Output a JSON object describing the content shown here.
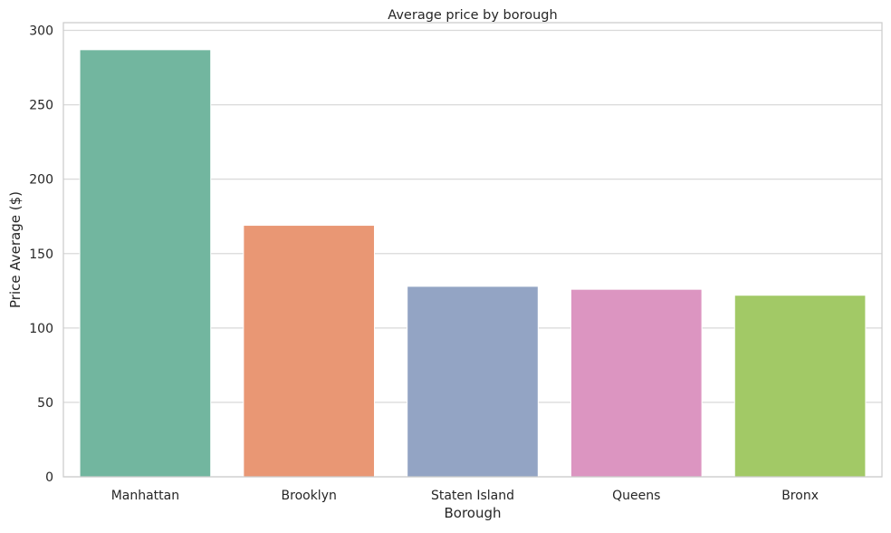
{
  "chart_data": {
    "type": "bar",
    "title": "Average price by borough",
    "xlabel": "Borough",
    "ylabel": "Price Average ($)",
    "categories": [
      "Manhattan",
      "Brooklyn",
      "Staten Island",
      "Queens",
      "Bronx"
    ],
    "values": [
      287,
      169,
      128,
      126,
      122
    ],
    "colors": [
      "#72b69f",
      "#e99774",
      "#93a4c4",
      "#dc95c1",
      "#a2c966"
    ],
    "ylim": [
      0,
      300
    ],
    "yticks": [
      0,
      50,
      100,
      150,
      200,
      250,
      300
    ],
    "grid": "horizontal",
    "legend": "none"
  }
}
